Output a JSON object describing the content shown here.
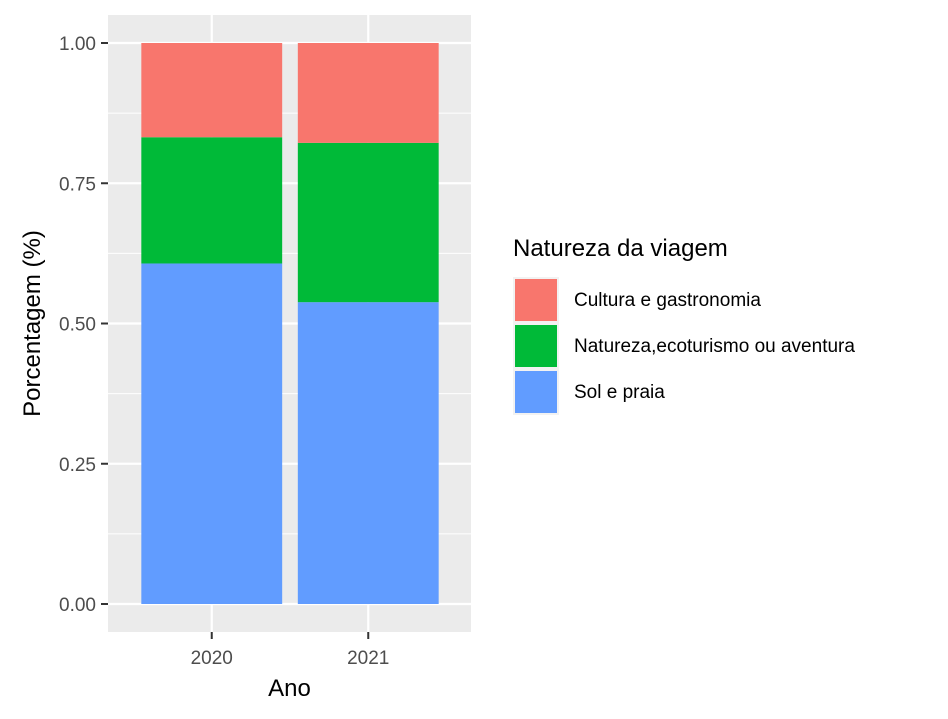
{
  "chart_data": {
    "type": "bar",
    "stacked": true,
    "categories": [
      "2020",
      "2021"
    ],
    "series": [
      {
        "name": "Sol e praia",
        "values": [
          0.607,
          0.538
        ],
        "color": "#619CFF"
      },
      {
        "name": "Natureza,ecoturismo ou aventura",
        "values": [
          0.225,
          0.284
        ],
        "color": "#00BA38"
      },
      {
        "name": "Cultura e gastronomia",
        "values": [
          0.168,
          0.178
        ],
        "color": "#F8766D"
      }
    ],
    "legend_order": [
      "Cultura e gastronomia",
      "Natureza,ecoturismo ou aventura",
      "Sol e praia"
    ],
    "xlabel": "Ano",
    "ylabel": "Porcentagem (%)",
    "ylim": [
      0,
      1
    ],
    "yticks": [
      0,
      0.25,
      0.5,
      0.75,
      1
    ],
    "ytick_labels": [
      "0.00",
      "0.25",
      "0.50",
      "0.75",
      "1.00"
    ],
    "legend_title": "Natureza da viagem",
    "legend_position": "right",
    "grid": true,
    "panel_background": "#EBEBEB",
    "grid_color": "#FFFFFF"
  }
}
